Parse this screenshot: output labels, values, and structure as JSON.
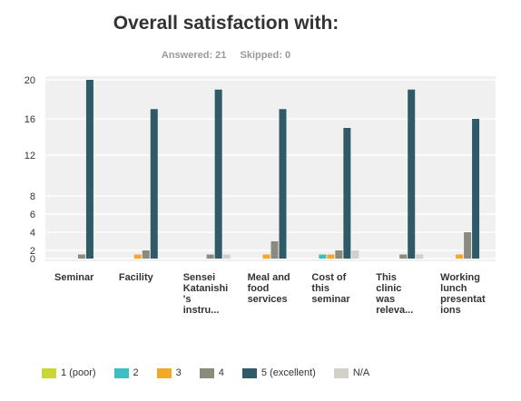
{
  "title": "Overall satisfaction with:",
  "answered": "Answered: 21",
  "skipped": "Skipped: 0",
  "chart_data": {
    "type": "bar",
    "categories": [
      [
        "Seminar"
      ],
      [
        "Facility"
      ],
      [
        "Sensei",
        "Katanishi",
        "'s",
        "instru..."
      ],
      [
        "Meal and",
        "food",
        "services"
      ],
      [
        "Cost of",
        "this",
        "seminar"
      ],
      [
        "This",
        "clinic",
        "was",
        "releva..."
      ],
      [
        "Working",
        "lunch",
        "presentat",
        "ions"
      ]
    ],
    "series": [
      {
        "name": "1 (poor)",
        "color": "#c8d733",
        "values": [
          0,
          0,
          0,
          0,
          0,
          0,
          0
        ]
      },
      {
        "name": "2",
        "color": "#3cbec3",
        "values": [
          0,
          0,
          0,
          0,
          1,
          0,
          0
        ]
      },
      {
        "name": "3",
        "color": "#f4a823",
        "values": [
          0,
          1,
          0,
          1,
          1,
          0,
          1
        ]
      },
      {
        "name": "4",
        "color": "#8b8b7d",
        "values": [
          1,
          2,
          1,
          3,
          2,
          1,
          4
        ]
      },
      {
        "name": "5 (excellent)",
        "color": "#2f5a68",
        "values": [
          20,
          17,
          19,
          17,
          15,
          19,
          16
        ]
      },
      {
        "name": "N/A",
        "color": "#d2d0c7",
        "values": [
          0,
          0,
          1,
          0,
          2,
          1,
          0
        ]
      }
    ],
    "y_ticks": [
      0,
      2,
      4,
      6,
      8,
      12,
      16,
      20
    ],
    "ylim": [
      0,
      20
    ],
    "grid": true,
    "legend_position": "bottom"
  }
}
